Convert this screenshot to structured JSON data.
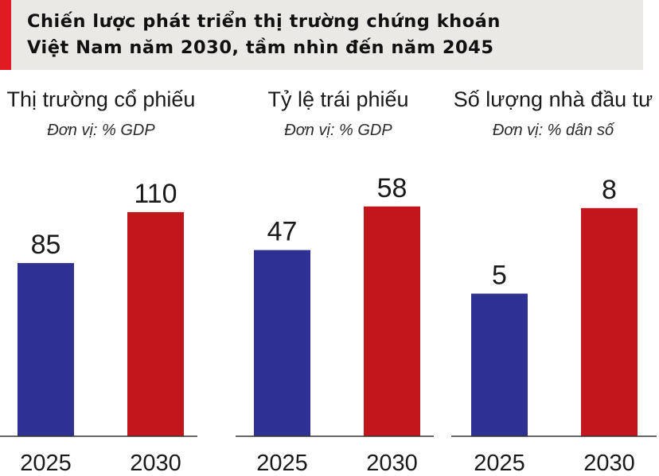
{
  "header": {
    "title_line1": "Chiến lược phát triển thị trường chứng khoán",
    "title_line2": "Việt Nam năm 2030, tầm nhìn đến năm 2045",
    "accent_color": "#e11b22",
    "background_color": "#ebe9e6"
  },
  "colors": {
    "year_2025": "#2e3192",
    "year_2030": "#c1161c"
  },
  "chart_data": [
    {
      "type": "bar",
      "title": "Thị trường cổ phiếu",
      "subtitle": "Đơn vị: % GDP",
      "categories": [
        "2025",
        "2030"
      ],
      "values": [
        85,
        110
      ],
      "value_labels": [
        "85",
        "110"
      ],
      "ylim": [
        0,
        140
      ],
      "grid": false,
      "legend": "none"
    },
    {
      "type": "bar",
      "title": "Tỷ lệ trái phiếu",
      "subtitle": "Đơn vị: % GDP",
      "categories": [
        "2025",
        "2030"
      ],
      "values": [
        47,
        58
      ],
      "value_labels": [
        "47",
        "58"
      ],
      "ylim": [
        0,
        72
      ],
      "grid": false,
      "legend": "none"
    },
    {
      "type": "bar",
      "title": "Số lượng nhà đầu tư",
      "subtitle": "Đơn vị: % dân số",
      "categories": [
        "2025",
        "2030"
      ],
      "values": [
        5,
        8
      ],
      "value_labels": [
        "5",
        "8"
      ],
      "ylim": [
        0,
        10
      ],
      "grid": false,
      "legend": "none"
    }
  ]
}
